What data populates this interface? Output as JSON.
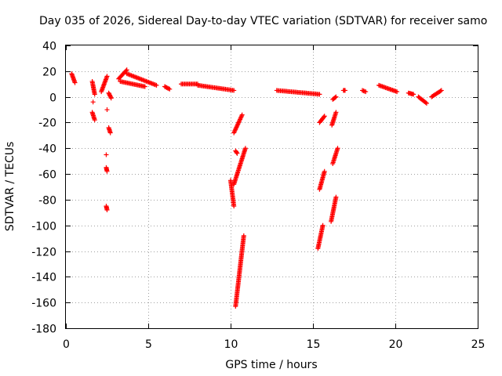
{
  "chart_data": {
    "type": "scatter",
    "title": "Day 035 of 2026, Sidereal Day-to-day VTEC variation (SDTVAR) for receiver samo",
    "xlabel": "GPS time / hours",
    "ylabel": "SDTVAR / TECUs",
    "xlim": [
      0,
      25
    ],
    "ylim": [
      -180,
      40
    ],
    "xticks": [
      0,
      5,
      10,
      15,
      20,
      25
    ],
    "yticks": [
      -180,
      -160,
      -140,
      -120,
      -100,
      -80,
      -60,
      -40,
      -20,
      0,
      20,
      40
    ],
    "grid": true,
    "marker": "+",
    "marker_color": "#ff0000",
    "series": [
      {
        "name": "SDTVAR",
        "segments": [
          {
            "x": [
              0.35,
              0.55
            ],
            "y": [
              18,
              11
            ]
          },
          {
            "x": [
              1.6,
              1.75
            ],
            "y": [
              12,
              2
            ]
          },
          {
            "x": [
              1.6,
              1.75
            ],
            "y": [
              -12,
              -18
            ]
          },
          {
            "x": [
              1.65
            ],
            "y": [
              -4
            ]
          },
          {
            "x": [
              2.15,
              2.5
            ],
            "y": [
              4,
              16
            ]
          },
          {
            "x": [
              2.45
            ],
            "y": [
              -45
            ]
          },
          {
            "x": [
              2.45,
              2.5
            ],
            "y": [
              -55,
              -58
            ]
          },
          {
            "x": [
              2.45,
              2.5
            ],
            "y": [
              -85,
              -88
            ]
          },
          {
            "x": [
              2.5
            ],
            "y": [
              -10
            ]
          },
          {
            "x": [
              2.6,
              2.7
            ],
            "y": [
              -24,
              -28
            ]
          },
          {
            "x": [
              2.6,
              2.75
            ],
            "y": [
              3,
              -1
            ]
          },
          {
            "x": [
              3.2,
              3.7
            ],
            "y": [
              14,
              21
            ]
          },
          {
            "x": [
              3.7,
              5.5
            ],
            "y": [
              18,
              9
            ]
          },
          {
            "x": [
              3.3,
              4.8
            ],
            "y": [
              12,
              8
            ]
          },
          {
            "x": [
              6.0,
              6.3
            ],
            "y": [
              8,
              6
            ]
          },
          {
            "x": [
              7.0,
              8.0
            ],
            "y": [
              10,
              10
            ]
          },
          {
            "x": [
              8.0,
              10.2
            ],
            "y": [
              9,
              5
            ]
          },
          {
            "x": [
              10.0,
              10.2
            ],
            "y": [
              -65,
              -85
            ]
          },
          {
            "x": [
              10.2,
              10.9
            ],
            "y": [
              -68,
              -40
            ]
          },
          {
            "x": [
              10.2,
              10.7
            ],
            "y": [
              -28,
              -14
            ]
          },
          {
            "x": [
              10.3,
              10.4
            ],
            "y": [
              -42,
              -44
            ]
          },
          {
            "x": [
              10.3,
              10.8
            ],
            "y": [
              -163,
              -108
            ]
          },
          {
            "x": [
              12.8,
              15.4
            ],
            "y": [
              5,
              2
            ]
          },
          {
            "x": [
              15.3,
              15.6
            ],
            "y": [
              -118,
              -100
            ]
          },
          {
            "x": [
              15.4,
              15.7
            ],
            "y": [
              -72,
              -58
            ]
          },
          {
            "x": [
              15.4,
              15.7
            ],
            "y": [
              -20,
              -15
            ]
          },
          {
            "x": [
              16.1,
              16.4
            ],
            "y": [
              -97,
              -78
            ]
          },
          {
            "x": [
              16.2,
              16.5
            ],
            "y": [
              -52,
              -40
            ]
          },
          {
            "x": [
              16.15,
              16.4
            ],
            "y": [
              -22,
              -12
            ]
          },
          {
            "x": [
              16.2,
              16.4
            ],
            "y": [
              -2,
              0
            ]
          },
          {
            "x": [
              16.85,
              16.95
            ],
            "y": [
              5,
              5
            ]
          },
          {
            "x": [
              18.0,
              18.2
            ],
            "y": [
              5,
              4
            ]
          },
          {
            "x": [
              19.0,
              20.1
            ],
            "y": [
              9,
              4
            ]
          },
          {
            "x": [
              20.8,
              21.1
            ],
            "y": [
              3,
              2
            ]
          },
          {
            "x": [
              21.4,
              21.9
            ],
            "y": [
              0,
              -5
            ]
          },
          {
            "x": [
              22.2,
              22.8
            ],
            "y": [
              0,
              5
            ]
          }
        ]
      }
    ]
  }
}
